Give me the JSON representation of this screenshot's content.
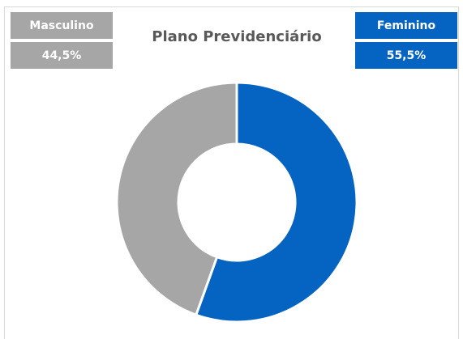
{
  "chart_data": {
    "type": "donut",
    "title": "Plano Previdenciário",
    "categories": [
      "Masculino",
      "Feminino"
    ],
    "values": [
      44.5,
      55.5
    ],
    "value_labels": [
      "44,5%",
      "55,5%"
    ],
    "colors": [
      "#a6a6a6",
      "#0563c1"
    ]
  }
}
